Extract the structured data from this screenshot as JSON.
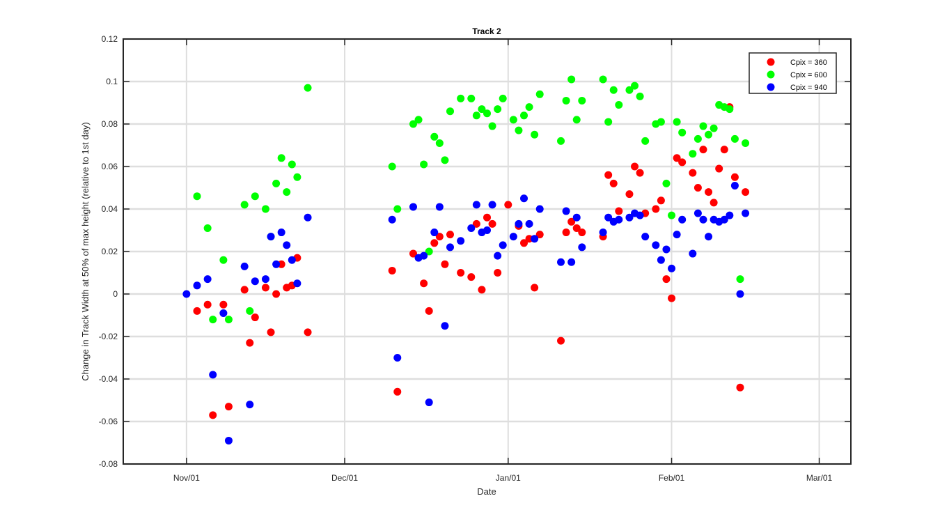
{
  "chart_data": {
    "type": "scatter",
    "title": "Track 2",
    "xlabel": "Date",
    "ylabel": "Change in Track Width at 50% of max height (relative to 1st day)",
    "xlim": [
      "2016-10-20",
      "2017-03-07"
    ],
    "ylim": [
      -0.08,
      0.12
    ],
    "x_ticks": [
      {
        "date": "2016-11-01",
        "label": "Nov/01"
      },
      {
        "date": "2016-12-01",
        "label": "Dec/01"
      },
      {
        "date": "2017-01-01",
        "label": "Jan/01"
      },
      {
        "date": "2017-02-01",
        "label": "Feb/01"
      },
      {
        "date": "2017-03-01",
        "label": "Mar/01"
      }
    ],
    "y_ticks": [
      -0.08,
      -0.06,
      -0.04,
      -0.02,
      0,
      0.02,
      0.04,
      0.06,
      0.08,
      0.1,
      0.12
    ],
    "y_tick_labels": [
      "-0.08",
      "-0.06",
      "-0.04",
      "-0.02",
      "0",
      "0.02",
      "0.04",
      "0.06",
      "0.08",
      "0.1",
      "0.12"
    ],
    "grid": true,
    "legend_position": "top-right",
    "series": [
      {
        "name": "Cpix = 360",
        "color": "#ff0000",
        "points": [
          [
            "2016-11-03",
            -0.008
          ],
          [
            "2016-11-05",
            -0.005
          ],
          [
            "2016-11-06",
            -0.057
          ],
          [
            "2016-11-08",
            -0.005
          ],
          [
            "2016-11-09",
            -0.053
          ],
          [
            "2016-11-12",
            0.002
          ],
          [
            "2016-11-13",
            -0.023
          ],
          [
            "2016-11-14",
            -0.011
          ],
          [
            "2016-11-16",
            0.003
          ],
          [
            "2016-11-17",
            -0.018
          ],
          [
            "2016-11-18",
            0.0
          ],
          [
            "2016-11-19",
            0.014
          ],
          [
            "2016-11-20",
            0.003
          ],
          [
            "2016-11-21",
            0.004
          ],
          [
            "2016-11-22",
            0.017
          ],
          [
            "2016-11-24",
            -0.018
          ],
          [
            "2016-12-10",
            0.011
          ],
          [
            "2016-12-11",
            -0.046
          ],
          [
            "2016-12-14",
            0.019
          ],
          [
            "2016-12-16",
            0.005
          ],
          [
            "2016-12-17",
            -0.008
          ],
          [
            "2016-12-18",
            0.024
          ],
          [
            "2016-12-19",
            0.027
          ],
          [
            "2016-12-20",
            0.014
          ],
          [
            "2016-12-21",
            0.028
          ],
          [
            "2016-12-23",
            0.01
          ],
          [
            "2016-12-25",
            0.008
          ],
          [
            "2016-12-26",
            0.033
          ],
          [
            "2016-12-27",
            0.002
          ],
          [
            "2016-12-28",
            0.036
          ],
          [
            "2016-12-29",
            0.033
          ],
          [
            "2016-12-30",
            0.01
          ],
          [
            "2017-01-01",
            0.042
          ],
          [
            "2017-01-03",
            0.032
          ],
          [
            "2017-01-04",
            0.024
          ],
          [
            "2017-01-05",
            0.026
          ],
          [
            "2017-01-06",
            0.003
          ],
          [
            "2017-01-07",
            0.028
          ],
          [
            "2017-01-11",
            -0.022
          ],
          [
            "2017-01-12",
            0.029
          ],
          [
            "2017-01-13",
            0.034
          ],
          [
            "2017-01-14",
            0.031
          ],
          [
            "2017-01-15",
            0.029
          ],
          [
            "2017-01-19",
            0.027
          ],
          [
            "2017-01-20",
            0.056
          ],
          [
            "2017-01-21",
            0.052
          ],
          [
            "2017-01-22",
            0.039
          ],
          [
            "2017-01-24",
            0.047
          ],
          [
            "2017-01-25",
            0.06
          ],
          [
            "2017-01-26",
            0.057
          ],
          [
            "2017-01-27",
            0.038
          ],
          [
            "2017-01-29",
            0.04
          ],
          [
            "2017-01-30",
            0.044
          ],
          [
            "2017-01-31",
            0.007
          ],
          [
            "2017-02-01",
            -0.002
          ],
          [
            "2017-02-02",
            0.064
          ],
          [
            "2017-02-03",
            0.062
          ],
          [
            "2017-02-05",
            0.057
          ],
          [
            "2017-02-06",
            0.05
          ],
          [
            "2017-02-07",
            0.068
          ],
          [
            "2017-02-08",
            0.048
          ],
          [
            "2017-02-09",
            0.043
          ],
          [
            "2017-02-10",
            0.059
          ],
          [
            "2017-02-11",
            0.068
          ],
          [
            "2017-02-12",
            0.088
          ],
          [
            "2017-02-13",
            0.055
          ],
          [
            "2017-02-14",
            -0.044
          ],
          [
            "2017-02-15",
            0.048
          ]
        ]
      },
      {
        "name": "Cpix = 600",
        "color": "#00ff00",
        "points": [
          [
            "2016-11-03",
            0.046
          ],
          [
            "2016-11-05",
            0.031
          ],
          [
            "2016-11-06",
            -0.012
          ],
          [
            "2016-11-08",
            0.016
          ],
          [
            "2016-11-09",
            -0.012
          ],
          [
            "2016-11-12",
            0.042
          ],
          [
            "2016-11-13",
            -0.008
          ],
          [
            "2016-11-14",
            0.046
          ],
          [
            "2016-11-16",
            0.04
          ],
          [
            "2016-11-17",
            0.027
          ],
          [
            "2016-11-18",
            0.052
          ],
          [
            "2016-11-19",
            0.064
          ],
          [
            "2016-11-20",
            0.048
          ],
          [
            "2016-11-21",
            0.061
          ],
          [
            "2016-11-22",
            0.055
          ],
          [
            "2016-11-24",
            0.097
          ],
          [
            "2016-12-10",
            0.06
          ],
          [
            "2016-12-11",
            0.04
          ],
          [
            "2016-12-14",
            0.08
          ],
          [
            "2016-12-15",
            0.082
          ],
          [
            "2016-12-16",
            0.061
          ],
          [
            "2016-12-17",
            0.02
          ],
          [
            "2016-12-18",
            0.074
          ],
          [
            "2016-12-19",
            0.071
          ],
          [
            "2016-12-20",
            0.063
          ],
          [
            "2016-12-21",
            0.086
          ],
          [
            "2016-12-23",
            0.092
          ],
          [
            "2016-12-25",
            0.092
          ],
          [
            "2016-12-26",
            0.084
          ],
          [
            "2016-12-27",
            0.087
          ],
          [
            "2016-12-28",
            0.085
          ],
          [
            "2016-12-29",
            0.079
          ],
          [
            "2016-12-30",
            0.087
          ],
          [
            "2016-12-31",
            0.092
          ],
          [
            "2017-01-02",
            0.082
          ],
          [
            "2017-01-03",
            0.077
          ],
          [
            "2017-01-04",
            0.084
          ],
          [
            "2017-01-05",
            0.088
          ],
          [
            "2017-01-06",
            0.075
          ],
          [
            "2017-01-07",
            0.094
          ],
          [
            "2017-01-11",
            0.072
          ],
          [
            "2017-01-12",
            0.091
          ],
          [
            "2017-01-13",
            0.101
          ],
          [
            "2017-01-14",
            0.082
          ],
          [
            "2017-01-15",
            0.091
          ],
          [
            "2017-01-19",
            0.101
          ],
          [
            "2017-01-20",
            0.081
          ],
          [
            "2017-01-21",
            0.096
          ],
          [
            "2017-01-22",
            0.089
          ],
          [
            "2017-01-24",
            0.096
          ],
          [
            "2017-01-25",
            0.098
          ],
          [
            "2017-01-26",
            0.093
          ],
          [
            "2017-01-27",
            0.072
          ],
          [
            "2017-01-29",
            0.08
          ],
          [
            "2017-01-30",
            0.081
          ],
          [
            "2017-01-31",
            0.052
          ],
          [
            "2017-02-01",
            0.037
          ],
          [
            "2017-02-02",
            0.081
          ],
          [
            "2017-02-03",
            0.076
          ],
          [
            "2017-02-05",
            0.066
          ],
          [
            "2017-02-06",
            0.073
          ],
          [
            "2017-02-07",
            0.079
          ],
          [
            "2017-02-08",
            0.075
          ],
          [
            "2017-02-09",
            0.078
          ],
          [
            "2017-02-10",
            0.089
          ],
          [
            "2017-02-11",
            0.088
          ],
          [
            "2017-02-12",
            0.087
          ],
          [
            "2017-02-13",
            0.073
          ],
          [
            "2017-02-14",
            0.007
          ],
          [
            "2017-02-15",
            0.071
          ]
        ]
      },
      {
        "name": "Cpix = 940",
        "color": "#0000ff",
        "points": [
          [
            "2016-11-01",
            0.0
          ],
          [
            "2016-11-03",
            0.004
          ],
          [
            "2016-11-05",
            0.007
          ],
          [
            "2016-11-06",
            -0.038
          ],
          [
            "2016-11-08",
            -0.009
          ],
          [
            "2016-11-09",
            -0.069
          ],
          [
            "2016-11-12",
            0.013
          ],
          [
            "2016-11-13",
            -0.052
          ],
          [
            "2016-11-14",
            0.006
          ],
          [
            "2016-11-16",
            0.007
          ],
          [
            "2016-11-17",
            0.027
          ],
          [
            "2016-11-18",
            0.014
          ],
          [
            "2016-11-19",
            0.029
          ],
          [
            "2016-11-20",
            0.023
          ],
          [
            "2016-11-21",
            0.016
          ],
          [
            "2016-11-22",
            0.005
          ],
          [
            "2016-11-24",
            0.036
          ],
          [
            "2016-12-10",
            0.035
          ],
          [
            "2016-12-11",
            -0.03
          ],
          [
            "2016-12-14",
            0.041
          ],
          [
            "2016-12-15",
            0.017
          ],
          [
            "2016-12-16",
            0.018
          ],
          [
            "2016-12-17",
            -0.051
          ],
          [
            "2016-12-18",
            0.029
          ],
          [
            "2016-12-19",
            0.041
          ],
          [
            "2016-12-20",
            -0.015
          ],
          [
            "2016-12-21",
            0.022
          ],
          [
            "2016-12-23",
            0.025
          ],
          [
            "2016-12-25",
            0.031
          ],
          [
            "2016-12-26",
            0.042
          ],
          [
            "2016-12-27",
            0.029
          ],
          [
            "2016-12-28",
            0.03
          ],
          [
            "2016-12-29",
            0.042
          ],
          [
            "2016-12-30",
            0.018
          ],
          [
            "2016-12-31",
            0.023
          ],
          [
            "2017-01-02",
            0.027
          ],
          [
            "2017-01-03",
            0.033
          ],
          [
            "2017-01-04",
            0.045
          ],
          [
            "2017-01-05",
            0.033
          ],
          [
            "2017-01-06",
            0.026
          ],
          [
            "2017-01-07",
            0.04
          ],
          [
            "2017-01-11",
            0.015
          ],
          [
            "2017-01-12",
            0.039
          ],
          [
            "2017-01-13",
            0.015
          ],
          [
            "2017-01-14",
            0.036
          ],
          [
            "2017-01-15",
            0.022
          ],
          [
            "2017-01-19",
            0.029
          ],
          [
            "2017-01-20",
            0.036
          ],
          [
            "2017-01-21",
            0.034
          ],
          [
            "2017-01-22",
            0.035
          ],
          [
            "2017-01-24",
            0.036
          ],
          [
            "2017-01-25",
            0.038
          ],
          [
            "2017-01-26",
            0.037
          ],
          [
            "2017-01-27",
            0.027
          ],
          [
            "2017-01-29",
            0.023
          ],
          [
            "2017-01-30",
            0.016
          ],
          [
            "2017-01-31",
            0.021
          ],
          [
            "2017-02-01",
            0.012
          ],
          [
            "2017-02-02",
            0.028
          ],
          [
            "2017-02-03",
            0.035
          ],
          [
            "2017-02-05",
            0.019
          ],
          [
            "2017-02-06",
            0.038
          ],
          [
            "2017-02-07",
            0.035
          ],
          [
            "2017-02-08",
            0.027
          ],
          [
            "2017-02-09",
            0.035
          ],
          [
            "2017-02-10",
            0.034
          ],
          [
            "2017-02-11",
            0.035
          ],
          [
            "2017-02-12",
            0.037
          ],
          [
            "2017-02-13",
            0.051
          ],
          [
            "2017-02-14",
            0.0
          ],
          [
            "2017-02-15",
            0.038
          ]
        ]
      }
    ]
  }
}
